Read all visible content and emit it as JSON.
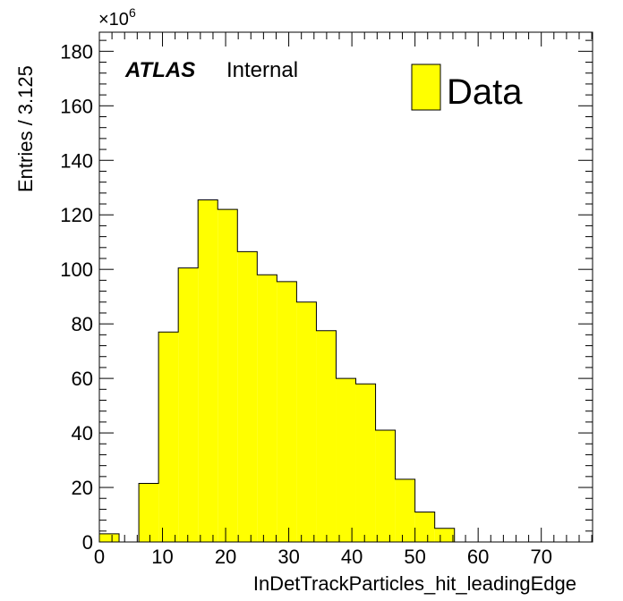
{
  "chart_data": {
    "type": "histogram",
    "xlabel": "InDetTrackParticles_hit_leadingEdge",
    "ylabel": "Entries / 3.125",
    "y_multiplier_base": "×10",
    "y_multiplier_exponent": "6",
    "xlim": [
      0,
      78.125
    ],
    "ylim": [
      0,
      187
    ],
    "x_tick_labels": [
      "0",
      "10",
      "20",
      "30",
      "40",
      "50",
      "60",
      "70"
    ],
    "y_tick_labels": [
      "0",
      "20",
      "40",
      "60",
      "80",
      "100",
      "120",
      "140",
      "160",
      "180"
    ],
    "bin_width": 3.125,
    "bin_edges_start": 0,
    "values": [
      3,
      0,
      21.5,
      77,
      100.5,
      125.5,
      122,
      106.5,
      98,
      95.5,
      88,
      77.5,
      60,
      58,
      41,
      23,
      11,
      5,
      0,
      0,
      0,
      0,
      0,
      0,
      0
    ],
    "fill_color": "#ffff00",
    "line_color": "#000000",
    "legend": [
      {
        "name": "Data",
        "color": "#ffff00"
      }
    ],
    "legend_position": "top-right",
    "label_bold": "ATLAS",
    "label_normal": "Internal",
    "grid": false
  }
}
